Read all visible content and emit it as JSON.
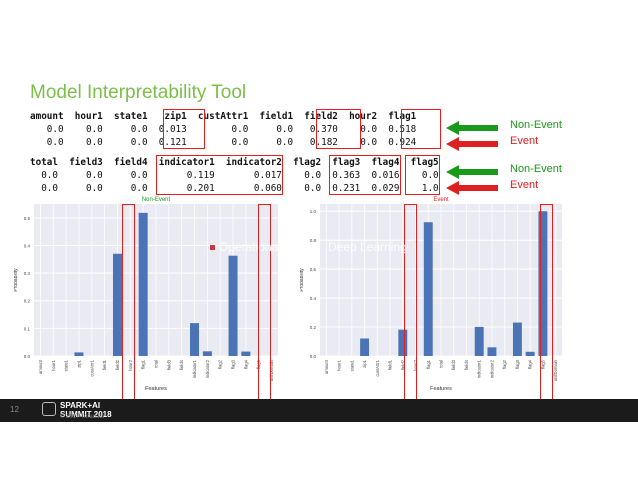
{
  "title": "Model Interpretability Tool",
  "table1": {
    "headers": [
      "amount",
      "hour1",
      "state1",
      "zip1",
      "custAttr1",
      "field1",
      "field2",
      "hour2",
      "flag1"
    ],
    "rows": [
      [
        "0.0",
        "0.0",
        "0.0",
        "0.013",
        "0.0",
        "0.0",
        "0.370",
        "0.0",
        "0.518"
      ],
      [
        "0.0",
        "0.0",
        "0.0",
        "0.121",
        "0.0",
        "0.0",
        "0.182",
        "0.0",
        "0.924"
      ]
    ]
  },
  "table2": {
    "headers": [
      "total",
      "field3",
      "field4",
      "indicator1",
      "indicator2",
      "flag2",
      "flag3",
      "flag4",
      "flag5"
    ],
    "rows": [
      [
        "0.0",
        "0.0",
        "0.0",
        "0.119",
        "0.017",
        "0.0",
        "0.363",
        "0.016",
        "0.0"
      ],
      [
        "0.0",
        "0.0",
        "0.0",
        "0.201",
        "0.060",
        "0.0",
        "0.231",
        "0.029",
        "1.0"
      ]
    ]
  },
  "legend": {
    "non_event_1": "Non-Event",
    "event_1": "Event",
    "non_event_2": "Non-Event",
    "event_2": "Event"
  },
  "colors": {
    "green": "#1a9a1a",
    "red": "#e02020",
    "bar": "#4a74b5",
    "title": "#7bbf4a"
  },
  "overlay": {
    "left": "Operational",
    "right": "Deep Learning"
  },
  "footer": {
    "slide_number": "12",
    "brand_line1": "SPARK+AI",
    "brand_line2": "SUMMIT 2018",
    "copyright": "© 2017 Teradata"
  },
  "chart_data": [
    {
      "type": "bar",
      "title": "Non-Event",
      "xlabel": "Features",
      "ylabel": "Probability",
      "ylim": [
        0,
        0.55
      ],
      "yticks": [
        "0.0",
        "0.1",
        "0.2",
        "0.3",
        "0.4",
        "0.5"
      ],
      "categories": [
        "amount",
        "hour1",
        "state1",
        "zip1",
        "custAttr1",
        "field1",
        "field2",
        "hour2",
        "flag1",
        "total",
        "field3",
        "field4",
        "indicator1",
        "indicator2",
        "flag2",
        "flag3",
        "flag4",
        "flag5",
        "unifDomain"
      ],
      "values": [
        0.0,
        0.0,
        0.0,
        0.013,
        0.0,
        0.0,
        0.37,
        0.0,
        0.518,
        0.0,
        0.0,
        0.0,
        0.119,
        0.017,
        0.0,
        0.363,
        0.016,
        0.0,
        0.0
      ]
    },
    {
      "type": "bar",
      "title": "Event",
      "xlabel": "Features",
      "ylabel": "Probability",
      "ylim": [
        0,
        1.05
      ],
      "yticks": [
        "0.0",
        "0.2",
        "0.4",
        "0.6",
        "0.8",
        "1.0"
      ],
      "categories": [
        "amount",
        "hour1",
        "state1",
        "zip1",
        "custAttr1",
        "field1",
        "field2",
        "hour2",
        "flag1",
        "total",
        "field3",
        "field4",
        "indicator1",
        "indicator2",
        "flag2",
        "flag3",
        "flag4",
        "flag5",
        "unifDomain"
      ],
      "values": [
        0.0,
        0.0,
        0.0,
        0.121,
        0.0,
        0.0,
        0.182,
        0.0,
        0.924,
        0.0,
        0.0,
        0.0,
        0.201,
        0.06,
        0.0,
        0.231,
        0.029,
        1.0,
        0.0
      ]
    }
  ]
}
